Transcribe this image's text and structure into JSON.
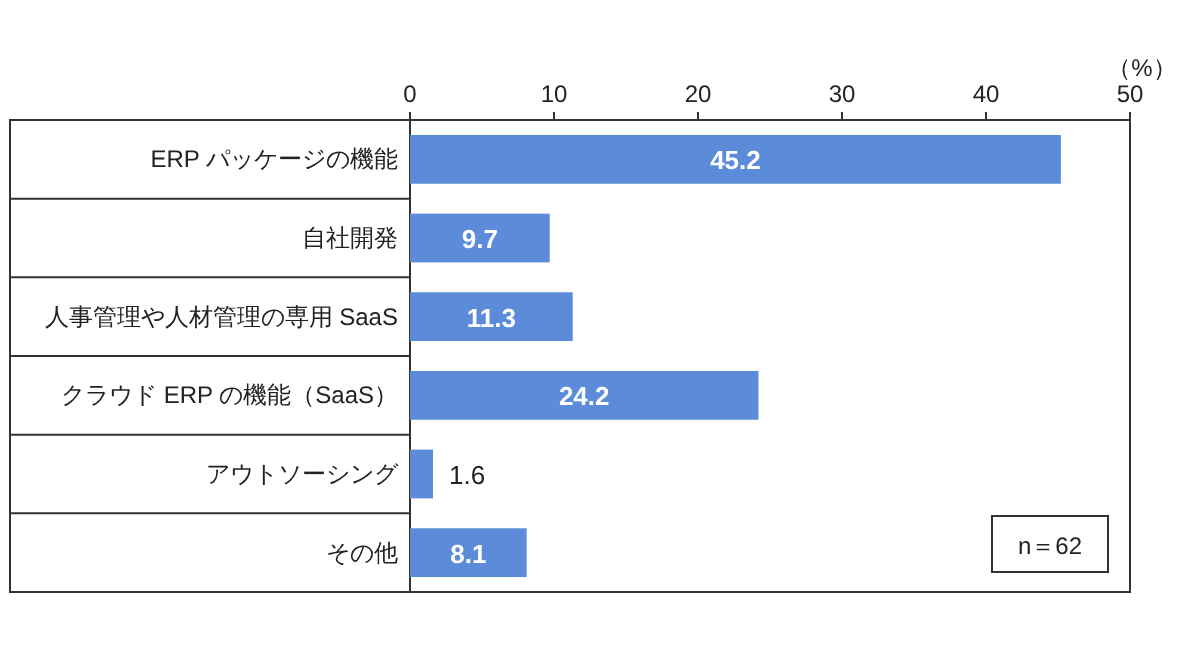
{
  "chart_data": {
    "type": "bar",
    "orientation": "horizontal",
    "xlabel": "（%）",
    "categories": [
      "ERP パッケージの機能",
      "自社開発",
      "人事管理や人材管理の専用 SaaS",
      "クラウド ERP の機能（SaaS）",
      "アウトソーシング",
      "その他"
    ],
    "values": [
      45.2,
      9.7,
      11.3,
      24.2,
      1.6,
      8.1
    ],
    "data_labels": true,
    "color": "#5b8bd9",
    "xlim": [
      0,
      50
    ],
    "xticks": [
      0,
      10,
      20,
      30,
      40,
      50
    ],
    "annotations": [
      "n＝62"
    ]
  }
}
